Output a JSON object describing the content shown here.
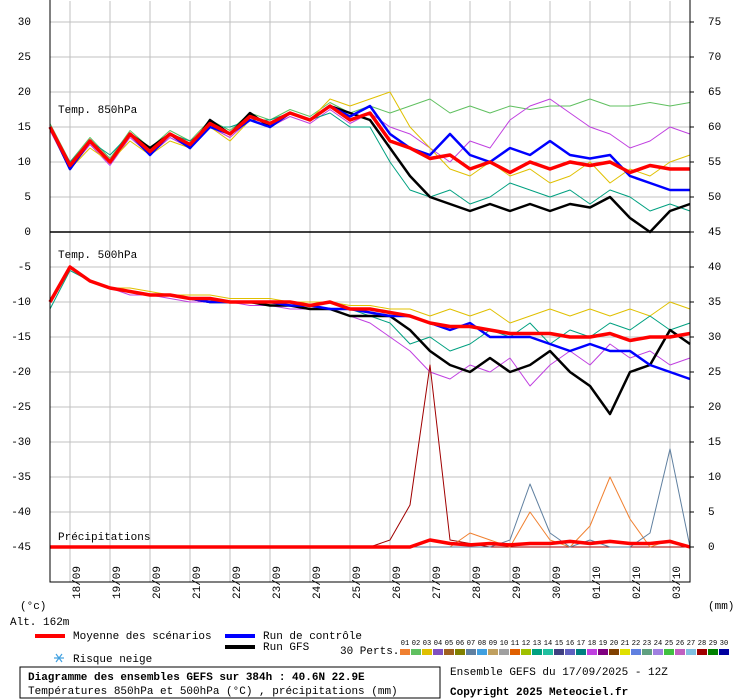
{
  "chart_data": {
    "type": "line",
    "labels": {
      "t850": "Temp. 850hPa",
      "t500": "Temp. 500hPa",
      "precip": "Précipitations",
      "y_unit": "(°c)",
      "y2_unit": "(mm)",
      "alt": "Alt. 162m",
      "perts": "30 Perts.",
      "snow": "Risque neige"
    },
    "footer": {
      "title": "Diagramme des ensembles GEFS sur 384h : 40.6N 22.9E",
      "subtitle": "Températures 850hPa et 500hPa (°C) , précipitations (mm)",
      "run": "Ensemble GEFS du 17/09/2025 - 12Z",
      "copyright": "Copyright 2025 Meteociel.fr"
    },
    "xlim": [
      0,
      384
    ],
    "xticks": [
      {
        "value": 12,
        "label": "18/09"
      },
      {
        "value": 36,
        "label": "19/09"
      },
      {
        "value": 60,
        "label": "20/09"
      },
      {
        "value": 84,
        "label": "21/09"
      },
      {
        "value": 108,
        "label": "22/09"
      },
      {
        "value": 132,
        "label": "23/09"
      },
      {
        "value": 156,
        "label": "24/09"
      },
      {
        "value": 180,
        "label": "25/09"
      },
      {
        "value": 204,
        "label": "26/09"
      },
      {
        "value": 228,
        "label": "27/09"
      },
      {
        "value": 252,
        "label": "28/09"
      },
      {
        "value": 276,
        "label": "29/09"
      },
      {
        "value": 300,
        "label": "30/09"
      },
      {
        "value": 324,
        "label": "01/10"
      },
      {
        "value": 348,
        "label": "02/10"
      },
      {
        "value": 372,
        "label": "03/10"
      }
    ],
    "ylim": [
      -50,
      33
    ],
    "yticks": [
      -45,
      -40,
      -35,
      -30,
      -25,
      -20,
      -15,
      -10,
      -5,
      0,
      5,
      10,
      15,
      20,
      25,
      30
    ],
    "y2lim": [
      -5,
      78
    ],
    "y2ticks": [
      0,
      5,
      10,
      15,
      20,
      25,
      30,
      35,
      40,
      45,
      50,
      55,
      60,
      65,
      70,
      75
    ],
    "grid": true,
    "x": [
      0,
      12,
      24,
      36,
      48,
      60,
      72,
      84,
      96,
      108,
      120,
      132,
      144,
      156,
      168,
      180,
      192,
      204,
      216,
      228,
      240,
      252,
      264,
      276,
      288,
      300,
      312,
      324,
      336,
      348,
      360,
      372,
      384
    ],
    "legend": [
      {
        "name": "Moyenne des scénarios",
        "color": "#ff0000"
      },
      {
        "name": "Run de contrôle",
        "color": "#0000ff"
      },
      {
        "name": "Run GFS",
        "color": "#000000"
      }
    ],
    "perturbations": [
      {
        "name": "01",
        "color": "#f08030"
      },
      {
        "name": "02",
        "color": "#60c060"
      },
      {
        "name": "03",
        "color": "#e0c000"
      },
      {
        "name": "04",
        "color": "#8050c0"
      },
      {
        "name": "05",
        "color": "#a06020"
      },
      {
        "name": "06",
        "color": "#808000"
      },
      {
        "name": "07",
        "color": "#6080a0"
      },
      {
        "name": "08",
        "color": "#40a0e0"
      },
      {
        "name": "09",
        "color": "#c0a060"
      },
      {
        "name": "10",
        "color": "#a0a0a0"
      },
      {
        "name": "11",
        "color": "#e06000"
      },
      {
        "name": "12",
        "color": "#a0c000"
      },
      {
        "name": "13",
        "color": "#00a080"
      },
      {
        "name": "14",
        "color": "#20c0a0"
      },
      {
        "name": "15",
        "color": "#404080"
      },
      {
        "name": "16",
        "color": "#6060c0"
      },
      {
        "name": "17",
        "color": "#008080"
      },
      {
        "name": "18",
        "color": "#c040e0"
      },
      {
        "name": "19",
        "color": "#800080"
      },
      {
        "name": "20",
        "color": "#804000"
      },
      {
        "name": "21",
        "color": "#e0e000"
      },
      {
        "name": "22",
        "color": "#6080e0"
      },
      {
        "name": "23",
        "color": "#60a080"
      },
      {
        "name": "24",
        "color": "#a080e0"
      },
      {
        "name": "25",
        "color": "#40c040"
      },
      {
        "name": "26",
        "color": "#c060c0"
      },
      {
        "name": "27",
        "color": "#80c0e0"
      },
      {
        "name": "28",
        "color": "#a00000"
      },
      {
        "name": "29",
        "color": "#008000"
      },
      {
        "name": "30",
        "color": "#0000a0"
      }
    ],
    "series_850": [
      {
        "color": "#60c060",
        "width": 1,
        "values": [
          15.5,
          10,
          13.5,
          10.5,
          14.5,
          12,
          14.5,
          13,
          16,
          14.5,
          17,
          16,
          17.5,
          16.5,
          18.5,
          17,
          18,
          17,
          18,
          19,
          17,
          18,
          17,
          18,
          17.5,
          18,
          18,
          19,
          18,
          18,
          18.5,
          18,
          18.5
        ]
      },
      {
        "color": "#c040e0",
        "width": 1,
        "values": [
          14.5,
          9,
          12.5,
          9.5,
          13.5,
          11,
          13.5,
          12,
          15,
          13.5,
          16,
          15,
          16.5,
          15.5,
          17.5,
          15.5,
          17,
          15,
          14,
          12,
          10,
          13,
          12,
          16,
          18,
          19,
          17,
          15,
          14,
          12,
          13,
          15,
          14
        ]
      },
      {
        "color": "#00a080",
        "width": 1,
        "values": [
          15,
          10,
          13,
          11,
          14,
          12,
          14,
          13,
          15,
          15,
          16,
          16,
          17,
          16,
          17,
          15,
          15,
          10,
          6,
          5,
          6,
          4,
          5,
          7,
          6,
          5,
          6,
          4,
          6,
          5,
          3,
          4,
          3
        ]
      },
      {
        "color": "#e0c000",
        "width": 1,
        "values": [
          15,
          9,
          12,
          10,
          13,
          11,
          13,
          12,
          15,
          13,
          16,
          15,
          17,
          16,
          19,
          18,
          19,
          20,
          15,
          12,
          9,
          8,
          10,
          8,
          9,
          7,
          8,
          10,
          7,
          9,
          8,
          10,
          11
        ]
      },
      {
        "color": "#000000",
        "width": 2.5,
        "values": [
          15,
          9,
          13,
          10,
          14,
          12,
          14,
          12,
          16,
          14,
          17,
          15,
          17,
          16,
          18,
          17,
          16,
          12,
          8,
          5,
          4,
          3,
          4,
          3,
          4,
          3,
          4,
          3.5,
          5,
          2,
          0,
          3,
          4
        ]
      },
      {
        "color": "#0000ff",
        "width": 2.5,
        "values": [
          15,
          9,
          13,
          10,
          14,
          11,
          14,
          12,
          15,
          14,
          16,
          15,
          17,
          16,
          18,
          16.5,
          18,
          14,
          12,
          11,
          14,
          11,
          10,
          12,
          11,
          13,
          11,
          10.5,
          11,
          8,
          7,
          6,
          6
        ]
      },
      {
        "color": "#ff0000",
        "width": 3.5,
        "values": [
          15,
          9.5,
          13,
          10,
          14,
          11.5,
          14,
          12.5,
          15.5,
          14,
          16.5,
          15.5,
          17,
          16,
          18,
          16,
          17,
          13,
          12,
          10.5,
          11,
          9,
          10,
          8.5,
          10,
          9,
          10,
          9.5,
          10,
          8.5,
          9.5,
          9,
          9
        ]
      }
    ],
    "series_500": [
      {
        "color": "#e0c000",
        "width": 1,
        "values": [
          -10,
          -5,
          -7,
          -8,
          -8,
          -8.5,
          -9,
          -9,
          -9,
          -9.5,
          -9.5,
          -9.5,
          -10,
          -10,
          -10,
          -10.5,
          -10.5,
          -11,
          -11,
          -12,
          -11,
          -12,
          -11,
          -13,
          -12,
          -11,
          -12,
          -11,
          -12,
          -11,
          -12,
          -10,
          -11
        ]
      },
      {
        "color": "#c040e0",
        "width": 1,
        "values": [
          -10,
          -5,
          -7,
          -8,
          -9,
          -9,
          -9.5,
          -10,
          -10,
          -10,
          -10.5,
          -10.5,
          -11,
          -11,
          -11,
          -12,
          -13,
          -15,
          -17,
          -20,
          -21,
          -19,
          -20,
          -18,
          -22,
          -19,
          -17,
          -19,
          -16,
          -18,
          -17,
          -19,
          -18
        ]
      },
      {
        "color": "#00a080",
        "width": 1,
        "values": [
          -11,
          -5.5,
          -7,
          -8,
          -8.5,
          -9,
          -9,
          -9.5,
          -10,
          -10,
          -10,
          -10,
          -10.5,
          -11,
          -11,
          -11,
          -12,
          -13,
          -16,
          -15,
          -17,
          -16,
          -14,
          -15,
          -13,
          -16,
          -14,
          -15,
          -13,
          -14,
          -12,
          -14,
          -13
        ]
      },
      {
        "color": "#000000",
        "width": 2.5,
        "values": [
          -10,
          -5,
          -7,
          -8,
          -8.5,
          -9,
          -9,
          -9.5,
          -10,
          -10,
          -10,
          -10.5,
          -10.5,
          -11,
          -11,
          -12,
          -12,
          -12,
          -14,
          -17,
          -19,
          -20,
          -18,
          -20,
          -19,
          -17,
          -20,
          -22,
          -26,
          -20,
          -19,
          -14,
          -16
        ]
      },
      {
        "color": "#0000ff",
        "width": 2.5,
        "values": [
          -10,
          -5,
          -7,
          -8,
          -8.5,
          -9,
          -9,
          -9.5,
          -10,
          -10,
          -10,
          -10,
          -10.5,
          -10.5,
          -11,
          -11,
          -11.5,
          -12,
          -12,
          -13,
          -14,
          -13,
          -15,
          -15,
          -15,
          -16,
          -17,
          -16,
          -17,
          -17,
          -19,
          -20,
          -21
        ]
      },
      {
        "color": "#ff0000",
        "width": 3.5,
        "values": [
          -10,
          -5,
          -7,
          -8,
          -8.5,
          -9,
          -9,
          -9.5,
          -9.5,
          -10,
          -10,
          -10,
          -10,
          -10.5,
          -10,
          -11,
          -11,
          -11.5,
          -12,
          -13,
          -13.5,
          -13.5,
          -14,
          -14.5,
          -14.5,
          -14.5,
          -15,
          -15,
          -14.5,
          -15.5,
          -15,
          -15,
          -14.5
        ]
      }
    ],
    "series_precip": [
      {
        "color": "#a00000",
        "width": 1,
        "axis": "y2",
        "values": [
          0,
          0,
          0,
          0,
          0,
          0,
          0,
          0,
          0,
          0,
          0,
          0,
          0,
          0,
          0,
          0,
          0,
          1,
          6,
          26,
          1,
          0.5,
          0,
          0,
          0,
          0,
          0,
          0,
          0,
          0,
          0,
          0,
          0
        ]
      },
      {
        "color": "#f08030",
        "width": 1,
        "axis": "y2",
        "values": [
          0,
          0,
          0,
          0,
          0,
          0,
          0,
          0,
          0,
          0,
          0,
          0,
          0,
          0,
          0,
          0,
          0,
          0,
          0,
          0,
          0,
          2,
          1,
          0,
          5,
          1,
          0,
          3,
          10,
          4,
          0,
          1,
          0
        ]
      },
      {
        "color": "#6080a0",
        "width": 1,
        "axis": "y2",
        "values": [
          0,
          0,
          0,
          0,
          0,
          0,
          0,
          0,
          0,
          0,
          0,
          0,
          0,
          0,
          0,
          0,
          0,
          0,
          0,
          0,
          0,
          0,
          0,
          1,
          9,
          2,
          0,
          1,
          0,
          0,
          2,
          14,
          0
        ]
      },
      {
        "color": "#ff0000",
        "width": 3.5,
        "axis": "y2",
        "values": [
          0,
          0,
          0,
          0,
          0,
          0,
          0,
          0,
          0,
          0,
          0,
          0,
          0,
          0,
          0,
          0,
          0,
          0,
          0,
          1,
          0.5,
          0.3,
          0.5,
          0.3,
          0.5,
          0.5,
          0.8,
          0.5,
          0.8,
          0.5,
          0.5,
          0.8,
          0
        ]
      }
    ]
  }
}
